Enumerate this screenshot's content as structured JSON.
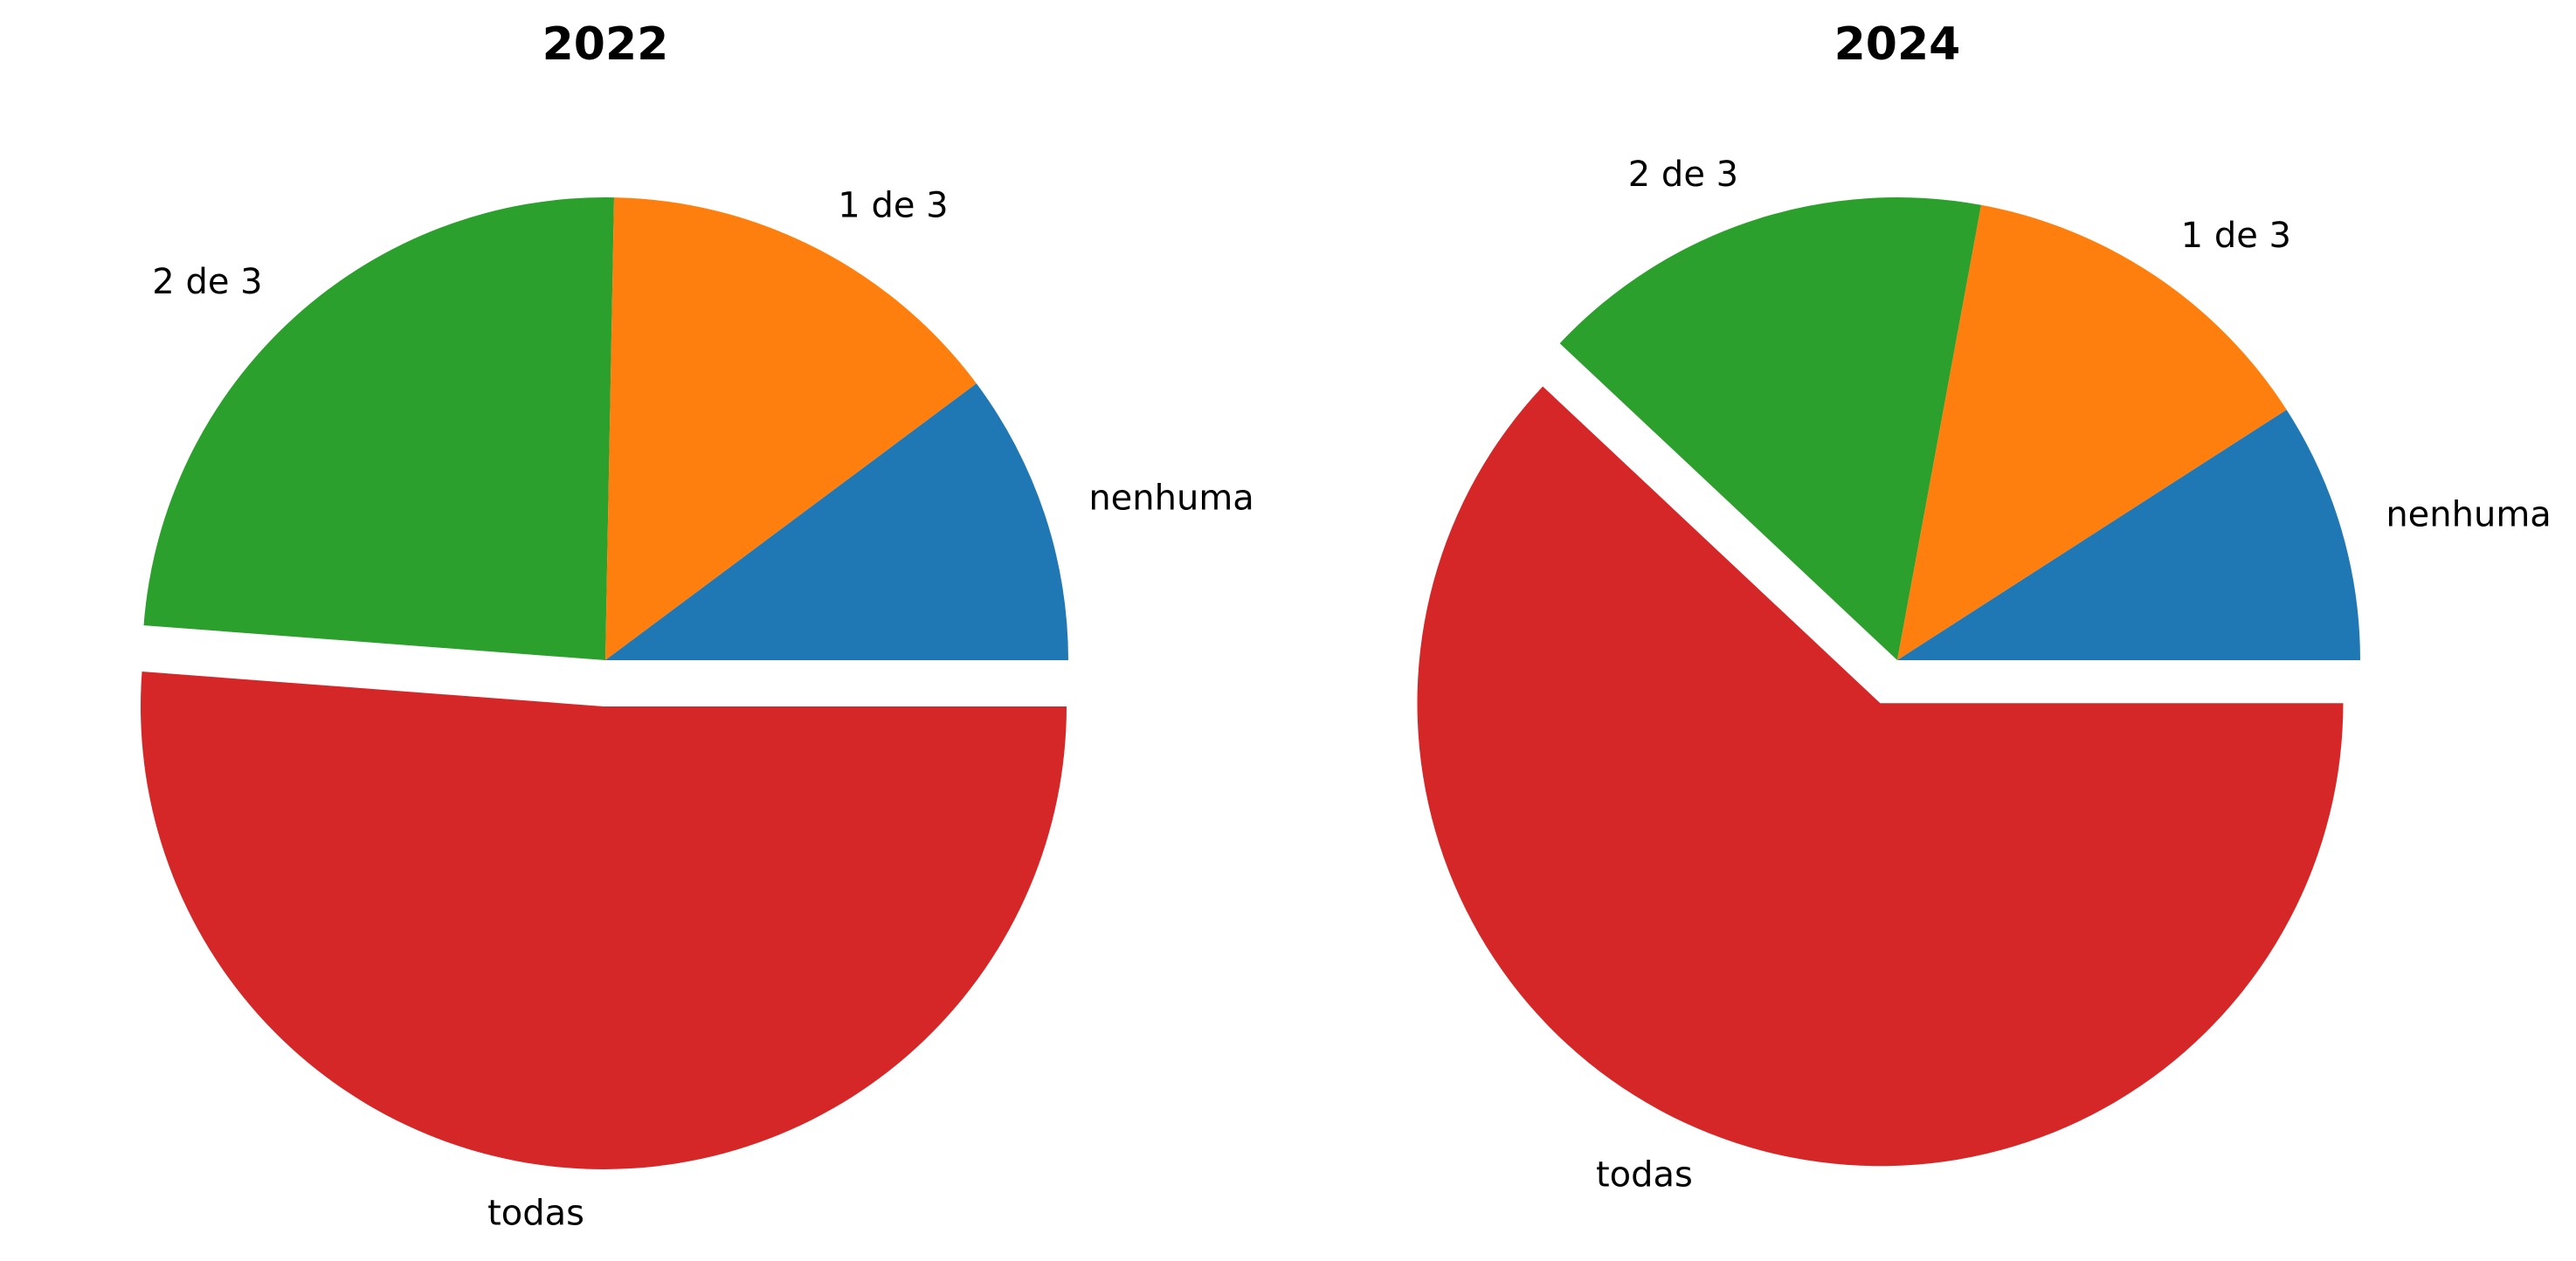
{
  "chart_data": [
    {
      "type": "pie",
      "title": "2022",
      "start_angle_deg": 0,
      "direction": "counterclockwise",
      "labels": [
        "nenhuma",
        "1 de 3",
        "2 de 3",
        "todas"
      ],
      "values": [
        10.2,
        14.5,
        24.1,
        51.2
      ],
      "exploded": [
        false,
        false,
        false,
        true
      ],
      "colors": [
        "#1f77b4",
        "#ff7f0e",
        "#2ca02c",
        "#d62728"
      ]
    },
    {
      "type": "pie",
      "title": "2024",
      "start_angle_deg": 0,
      "direction": "counterclockwise",
      "labels": [
        "nenhuma",
        "1 de 3",
        "2 de 3",
        "todas"
      ],
      "values": [
        9.1,
        13.0,
        15.9,
        62.0
      ],
      "exploded": [
        false,
        false,
        false,
        true
      ],
      "colors": [
        "#1f77b4",
        "#ff7f0e",
        "#2ca02c",
        "#d62728"
      ]
    }
  ]
}
